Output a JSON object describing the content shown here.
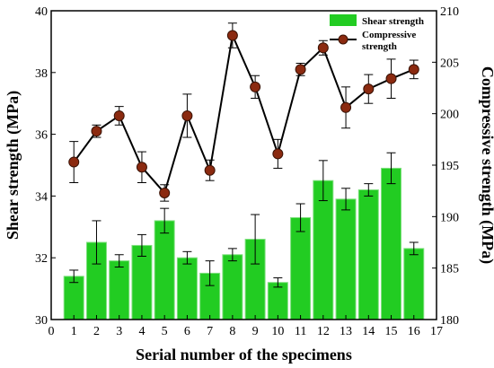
{
  "chart_data": {
    "type": "bar+line",
    "x": [
      1,
      2,
      3,
      4,
      5,
      6,
      7,
      8,
      9,
      10,
      11,
      12,
      13,
      14,
      15,
      16
    ],
    "xlabel": "Serial number of the specimens",
    "xlim": [
      0,
      17
    ],
    "xticks": [
      0,
      1,
      2,
      3,
      4,
      5,
      6,
      7,
      8,
      9,
      10,
      11,
      12,
      13,
      14,
      15,
      16,
      17
    ],
    "left_axis": {
      "label": "Shear strength (MPa)",
      "ylim": [
        30,
        40
      ],
      "ticks": [
        30,
        32,
        34,
        36,
        38,
        40
      ]
    },
    "right_axis": {
      "label": "Compressive strength (MPa)",
      "ylim": [
        180,
        210
      ],
      "ticks": [
        180,
        185,
        190,
        195,
        200,
        205,
        210
      ]
    },
    "series": [
      {
        "name": "Shear strength",
        "kind": "bar",
        "axis": "left",
        "color": "#22cc22",
        "values": [
          31.4,
          32.5,
          31.9,
          32.4,
          33.2,
          32.0,
          31.5,
          32.1,
          32.6,
          31.2,
          33.3,
          34.5,
          33.9,
          34.2,
          34.9,
          32.3
        ],
        "errors": [
          0.2,
          0.7,
          0.2,
          0.35,
          0.4,
          0.2,
          0.4,
          0.2,
          0.8,
          0.15,
          0.45,
          0.65,
          0.35,
          0.2,
          0.5,
          0.2
        ]
      },
      {
        "name": "Compressive strength",
        "kind": "line",
        "axis": "right",
        "color": "#000000",
        "marker_color": "#8b2a10",
        "values": [
          195.3,
          198.3,
          199.8,
          194.8,
          192.3,
          199.8,
          194.5,
          207.6,
          202.6,
          196.1,
          204.3,
          206.4,
          200.6,
          202.4,
          203.4,
          204.3
        ],
        "errors": [
          2.0,
          0.6,
          0.9,
          1.5,
          0.8,
          2.1,
          1.0,
          1.2,
          1.1,
          1.4,
          0.6,
          0.7,
          2.0,
          1.4,
          1.9,
          0.9
        ]
      }
    ],
    "legend": {
      "placement": "top-right",
      "entries": [
        "Shear strength",
        "Compressive strength"
      ]
    }
  }
}
